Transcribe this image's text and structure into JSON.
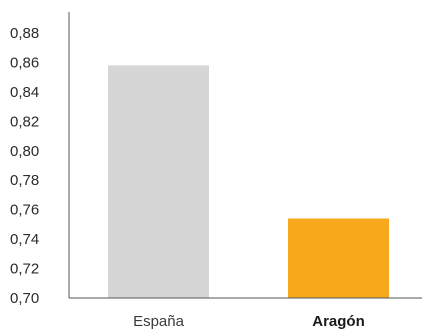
{
  "chart_data": {
    "type": "bar",
    "categories": [
      "España",
      "Aragón"
    ],
    "values": [
      0.858,
      0.754
    ],
    "ylim": [
      0.7,
      0.88
    ],
    "yticks": [
      "0,70",
      "0,72",
      "0,74",
      "0,76",
      "0,78",
      "0,80",
      "0,82",
      "0,84",
      "0,86",
      "0,88"
    ],
    "bold_categories": [
      false,
      true
    ],
    "colors": [
      "#d6d6d6",
      "#f7a81b"
    ],
    "axis_color": "#555555",
    "grid": false,
    "title": "",
    "xlabel": "",
    "ylabel": ""
  }
}
